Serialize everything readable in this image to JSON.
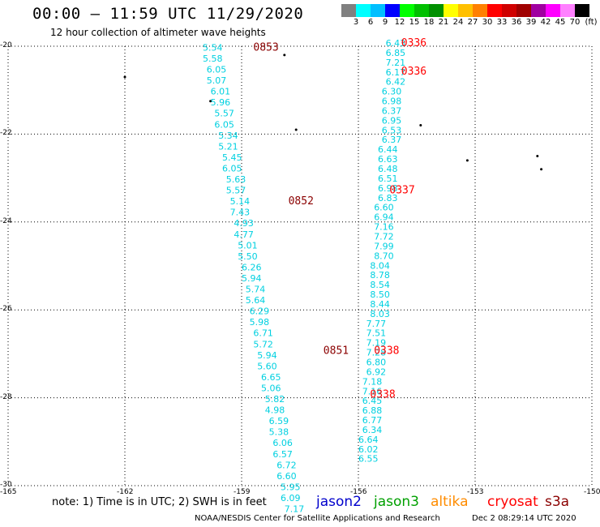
{
  "header": {
    "title": "00:00 – 11:59 UTC 11/29/2020",
    "subtitle": "12 hour collection of altimeter wave heights"
  },
  "legend_scale": {
    "unit_label": "(ft)",
    "labels": [
      "3",
      "6",
      "9",
      "12",
      "15",
      "18",
      "21",
      "24",
      "27",
      "30",
      "33",
      "36",
      "39",
      "42",
      "45",
      "70"
    ],
    "colors": [
      "#808080",
      "#00ffff",
      "#00bfff",
      "#0000ff",
      "#00ff00",
      "#00c000",
      "#009000",
      "#ffff00",
      "#ffc000",
      "#ff8000",
      "#ff0000",
      "#d00000",
      "#a00000",
      "#a000a0",
      "#ff00ff",
      "#ff80ff",
      "#000000"
    ]
  },
  "map": {
    "lat_labels": [
      "-20",
      "-22",
      "-24",
      "-26",
      "-28",
      "-30"
    ],
    "lon_labels": [
      "-165",
      "-162",
      "-159",
      "-156",
      "-153",
      "-150"
    ],
    "swh_color": "#00d0e0",
    "time_color_jason3": "#8b0000",
    "time_color_cryosat": "#ff0000"
  },
  "tracks": [
    {
      "id": "track-west",
      "time_labels": [
        {
          "text": "0853",
          "lat": -20.1,
          "lon": -158.7
        },
        {
          "text": "0852",
          "lat": -23.6,
          "lon": -157.8
        },
        {
          "text": "0851",
          "lat": -27.0,
          "lon": -156.9
        }
      ],
      "points": [
        {
          "lat": -20.1,
          "lon": -160.0,
          "swh": "5.54"
        },
        {
          "lat": -20.35,
          "lon": -160.0,
          "swh": "5.58"
        },
        {
          "lat": -20.6,
          "lon": -159.9,
          "swh": "6.05"
        },
        {
          "lat": -20.85,
          "lon": -159.9,
          "swh": "5.07"
        },
        {
          "lat": -21.1,
          "lon": -159.8,
          "swh": "6.01"
        },
        {
          "lat": -21.35,
          "lon": -159.8,
          "swh": "5.96"
        },
        {
          "lat": -21.6,
          "lon": -159.7,
          "swh": "5.57"
        },
        {
          "lat": -21.85,
          "lon": -159.7,
          "swh": "6.05"
        },
        {
          "lat": -22.1,
          "lon": -159.6,
          "swh": "5.34"
        },
        {
          "lat": -22.35,
          "lon": -159.6,
          "swh": "5.21"
        },
        {
          "lat": -22.6,
          "lon": -159.5,
          "swh": "5.45"
        },
        {
          "lat": -22.85,
          "lon": -159.5,
          "swh": "6.05"
        },
        {
          "lat": -23.1,
          "lon": -159.4,
          "swh": "5.63"
        },
        {
          "lat": -23.35,
          "lon": -159.4,
          "swh": "5.57"
        },
        {
          "lat": -23.6,
          "lon": -159.3,
          "swh": "5.14"
        },
        {
          "lat": -23.85,
          "lon": -159.3,
          "swh": "7.43"
        },
        {
          "lat": -24.1,
          "lon": -159.2,
          "swh": "4.93"
        },
        {
          "lat": -24.35,
          "lon": -159.2,
          "swh": "4.77"
        },
        {
          "lat": -24.6,
          "lon": -159.1,
          "swh": "5.01"
        },
        {
          "lat": -24.85,
          "lon": -159.1,
          "swh": "5.50"
        },
        {
          "lat": -25.1,
          "lon": -159.0,
          "swh": "6.26"
        },
        {
          "lat": -25.35,
          "lon": -159.0,
          "swh": "5.94"
        },
        {
          "lat": -25.6,
          "lon": -158.9,
          "swh": "5.74"
        },
        {
          "lat": -25.85,
          "lon": -158.9,
          "swh": "5.64"
        },
        {
          "lat": -26.1,
          "lon": -158.8,
          "swh": "6.29"
        },
        {
          "lat": -26.35,
          "lon": -158.8,
          "swh": "5.98"
        },
        {
          "lat": -26.6,
          "lon": -158.7,
          "swh": "6.71"
        },
        {
          "lat": -26.85,
          "lon": -158.7,
          "swh": "5.72"
        },
        {
          "lat": -27.1,
          "lon": -158.6,
          "swh": "5.94"
        },
        {
          "lat": -27.35,
          "lon": -158.6,
          "swh": "5.60"
        },
        {
          "lat": -27.6,
          "lon": -158.5,
          "swh": "6.65"
        },
        {
          "lat": -27.85,
          "lon": -158.5,
          "swh": "5.06"
        },
        {
          "lat": -28.1,
          "lon": -158.4,
          "swh": "5.82"
        },
        {
          "lat": -28.35,
          "lon": -158.4,
          "swh": "4.98"
        },
        {
          "lat": -28.6,
          "lon": -158.3,
          "swh": "6.59"
        },
        {
          "lat": -28.85,
          "lon": -158.3,
          "swh": "5.38"
        },
        {
          "lat": -29.1,
          "lon": -158.2,
          "swh": "6.06"
        },
        {
          "lat": -29.35,
          "lon": -158.2,
          "swh": "6.57"
        },
        {
          "lat": -29.6,
          "lon": -158.1,
          "swh": "6.72"
        },
        {
          "lat": -29.85,
          "lon": -158.1,
          "swh": "6.60"
        },
        {
          "lat": -30.1,
          "lon": -158.0,
          "swh": "5.95"
        },
        {
          "lat": -30.35,
          "lon": -158.0,
          "swh": "6.09"
        },
        {
          "lat": -30.6,
          "lon": -157.9,
          "swh": "7.17"
        }
      ]
    },
    {
      "id": "track-east",
      "time_labels": [
        {
          "text": "0336",
          "lat": -20.0,
          "lon": -154.9
        },
        {
          "text": "0336",
          "lat": -20.65,
          "lon": -154.9
        },
        {
          "text": "0337",
          "lat": -23.35,
          "lon": -155.2
        },
        {
          "text": "0338",
          "lat": -27.0,
          "lon": -155.6
        },
        {
          "text": "0338",
          "lat": -28.0,
          "lon": -155.7
        }
      ],
      "points": [
        {
          "lat": -20.0,
          "lon": -155.3,
          "swh": "6.43"
        },
        {
          "lat": -20.22,
          "lon": -155.3,
          "swh": "6.85"
        },
        {
          "lat": -20.44,
          "lon": -155.3,
          "swh": "7.21"
        },
        {
          "lat": -20.66,
          "lon": -155.3,
          "swh": "6.17"
        },
        {
          "lat": -20.88,
          "lon": -155.3,
          "swh": "6.42"
        },
        {
          "lat": -21.1,
          "lon": -155.4,
          "swh": "6.30"
        },
        {
          "lat": -21.32,
          "lon": -155.4,
          "swh": "6.98"
        },
        {
          "lat": -21.54,
          "lon": -155.4,
          "swh": "6.37"
        },
        {
          "lat": -21.76,
          "lon": -155.4,
          "swh": "6.95"
        },
        {
          "lat": -21.98,
          "lon": -155.4,
          "swh": "6.53"
        },
        {
          "lat": -22.2,
          "lon": -155.4,
          "swh": "6.37"
        },
        {
          "lat": -22.42,
          "lon": -155.5,
          "swh": "6.44"
        },
        {
          "lat": -22.64,
          "lon": -155.5,
          "swh": "6.63"
        },
        {
          "lat": -22.86,
          "lon": -155.5,
          "swh": "6.48"
        },
        {
          "lat": -23.08,
          "lon": -155.5,
          "swh": "6.51"
        },
        {
          "lat": -23.3,
          "lon": -155.5,
          "swh": "6.98"
        },
        {
          "lat": -23.52,
          "lon": -155.5,
          "swh": "6.83"
        },
        {
          "lat": -23.74,
          "lon": -155.6,
          "swh": "6.60"
        },
        {
          "lat": -23.96,
          "lon": -155.6,
          "swh": "6.94"
        },
        {
          "lat": -24.18,
          "lon": -155.6,
          "swh": "7.16"
        },
        {
          "lat": -24.4,
          "lon": -155.6,
          "swh": "7.72"
        },
        {
          "lat": -24.62,
          "lon": -155.6,
          "swh": "7.99"
        },
        {
          "lat": -24.84,
          "lon": -155.6,
          "swh": "8.70"
        },
        {
          "lat": -25.06,
          "lon": -155.7,
          "swh": "8.04"
        },
        {
          "lat": -25.28,
          "lon": -155.7,
          "swh": "8.78"
        },
        {
          "lat": -25.5,
          "lon": -155.7,
          "swh": "8.54"
        },
        {
          "lat": -25.72,
          "lon": -155.7,
          "swh": "8.50"
        },
        {
          "lat": -25.94,
          "lon": -155.7,
          "swh": "8.44"
        },
        {
          "lat": -26.16,
          "lon": -155.7,
          "swh": "8.03"
        },
        {
          "lat": -26.38,
          "lon": -155.8,
          "swh": "7.77"
        },
        {
          "lat": -26.6,
          "lon": -155.8,
          "swh": "7.51"
        },
        {
          "lat": -26.82,
          "lon": -155.8,
          "swh": "7.19"
        },
        {
          "lat": -27.04,
          "lon": -155.8,
          "swh": "7.28"
        },
        {
          "lat": -27.26,
          "lon": -155.8,
          "swh": "6.80"
        },
        {
          "lat": -27.48,
          "lon": -155.8,
          "swh": "6.92"
        },
        {
          "lat": -27.7,
          "lon": -155.9,
          "swh": "7.18"
        },
        {
          "lat": -27.92,
          "lon": -155.9,
          "swh": "7.16"
        },
        {
          "lat": -28.14,
          "lon": -155.9,
          "swh": "6.45"
        },
        {
          "lat": -28.36,
          "lon": -155.9,
          "swh": "6.88"
        },
        {
          "lat": -28.58,
          "lon": -155.9,
          "swh": "6.77"
        },
        {
          "lat": -28.8,
          "lon": -155.9,
          "swh": "6.34"
        },
        {
          "lat": -29.02,
          "lon": -156.0,
          "swh": "6.64"
        },
        {
          "lat": -29.24,
          "lon": -156.0,
          "swh": "6.02"
        },
        {
          "lat": -29.46,
          "lon": -156.0,
          "swh": "6.55"
        }
      ]
    }
  ],
  "islands": [
    {
      "lat": -20.2,
      "lon": -157.9
    },
    {
      "lat": -20.7,
      "lon": -162.0
    },
    {
      "lat": -21.25,
      "lon": -159.8
    },
    {
      "lat": -21.9,
      "lon": -157.6
    },
    {
      "lat": -21.8,
      "lon": -154.4
    },
    {
      "lat": -22.6,
      "lon": -153.2
    },
    {
      "lat": -22.5,
      "lon": -151.4
    },
    {
      "lat": -22.8,
      "lon": -151.3
    }
  ],
  "footer": {
    "note": "note: 1) Time is in UTC; 2) SWH is in feet",
    "satellites": [
      {
        "name": "jason2",
        "color": "#0000cc"
      },
      {
        "name": "jason3",
        "color": "#00a000"
      },
      {
        "name": "altika",
        "color": "#ff8c00"
      },
      {
        "name": "cryosat",
        "color": "#ff0000"
      },
      {
        "name": "s3a",
        "color": "#8b0000"
      }
    ],
    "credit": "NOAA/NESDIS Center for Satellite Applications and Research",
    "generated": "Dec  2 08:29:14 UTC 2020"
  }
}
